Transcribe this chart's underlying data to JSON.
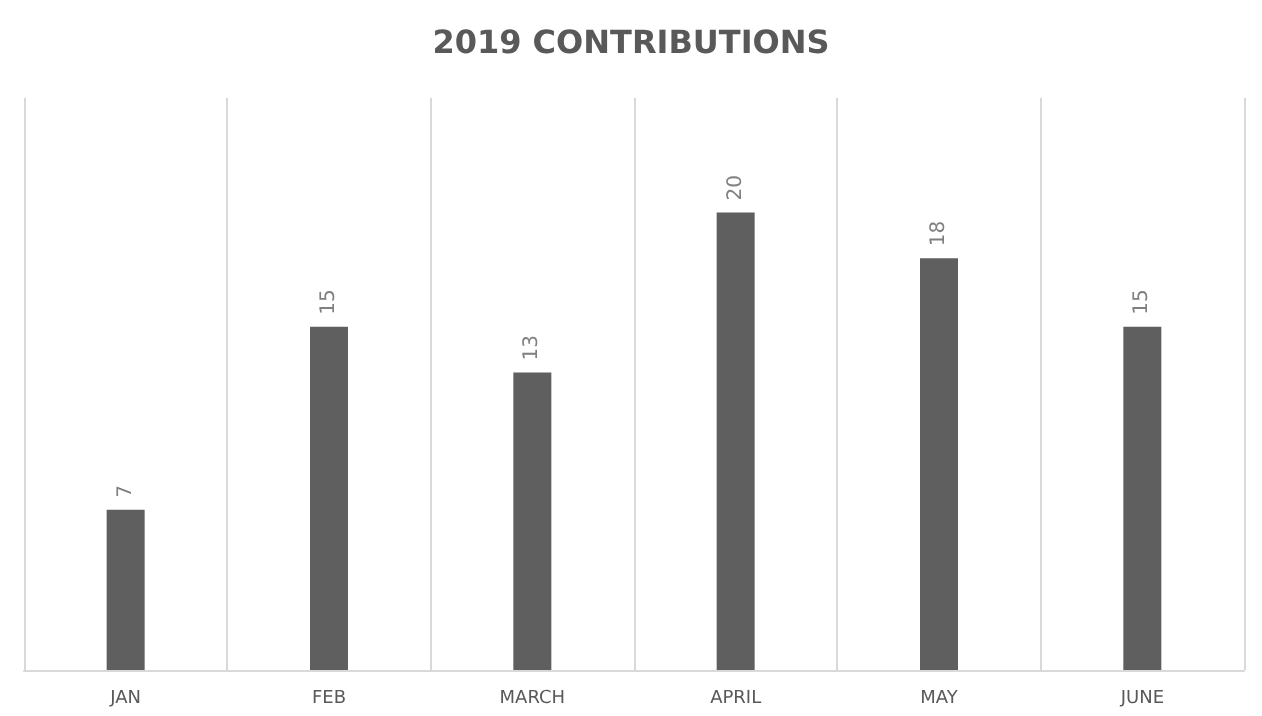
{
  "chart_data": {
    "type": "bar",
    "title": "2019 CONTRIBUTIONS",
    "categories": [
      "JAN",
      "FEB",
      "MARCH",
      "APRIL",
      "MAY",
      "JUNE"
    ],
    "values": [
      7,
      15,
      13,
      20,
      18,
      15
    ],
    "color": "#5f5f5f",
    "ylim": [
      0,
      25
    ],
    "data_labels": true,
    "grid": "x",
    "tick_labels": "x"
  }
}
